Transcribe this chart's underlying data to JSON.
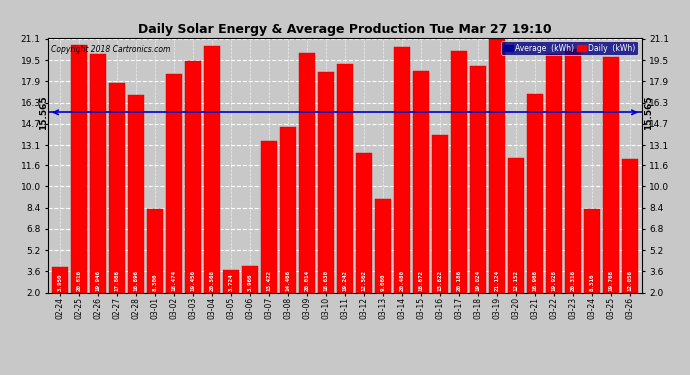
{
  "title": "Daily Solar Energy & Average Production Tue Mar 27 19:10",
  "copyright": "Copyright 2018 Cartronics.com",
  "average_label": "15.565",
  "average_value": 15.565,
  "categories": [
    "02-24",
    "02-25",
    "02-26",
    "02-27",
    "02-28",
    "03-01",
    "03-02",
    "03-03",
    "03-04",
    "03-05",
    "03-06",
    "03-07",
    "03-08",
    "03-09",
    "03-10",
    "03-11",
    "03-12",
    "03-13",
    "03-14",
    "03-15",
    "03-16",
    "03-17",
    "03-18",
    "03-19",
    "03-20",
    "03-21",
    "03-22",
    "03-23",
    "03-24",
    "03-25",
    "03-26"
  ],
  "values": [
    3.95,
    20.61,
    19.946,
    17.808,
    16.896,
    8.3,
    18.474,
    19.456,
    20.568,
    3.724,
    3.966,
    13.422,
    14.466,
    20.014,
    18.63,
    19.242,
    12.502,
    9.06,
    20.48,
    18.672,
    13.822,
    20.186,
    19.024,
    21.124,
    12.152,
    16.968,
    19.928,
    20.316,
    8.316,
    19.768,
    12.056
  ],
  "bar_color": "#ff0000",
  "bar_edge_color": "#cc0000",
  "avg_line_color": "#0000cc",
  "background_color": "#c8c8c8",
  "plot_bg_color": "#c8c8c8",
  "yticks": [
    2.0,
    3.6,
    5.2,
    6.8,
    8.4,
    10.0,
    11.6,
    13.1,
    14.7,
    16.3,
    17.9,
    19.5,
    21.1
  ],
  "ymin": 2.0,
  "ymax": 21.1,
  "legend_avg_color": "#000099",
  "legend_daily_color": "#ff0000",
  "legend_avg_text": "Average  (kWh)",
  "legend_daily_text": "Daily  (kWh)"
}
